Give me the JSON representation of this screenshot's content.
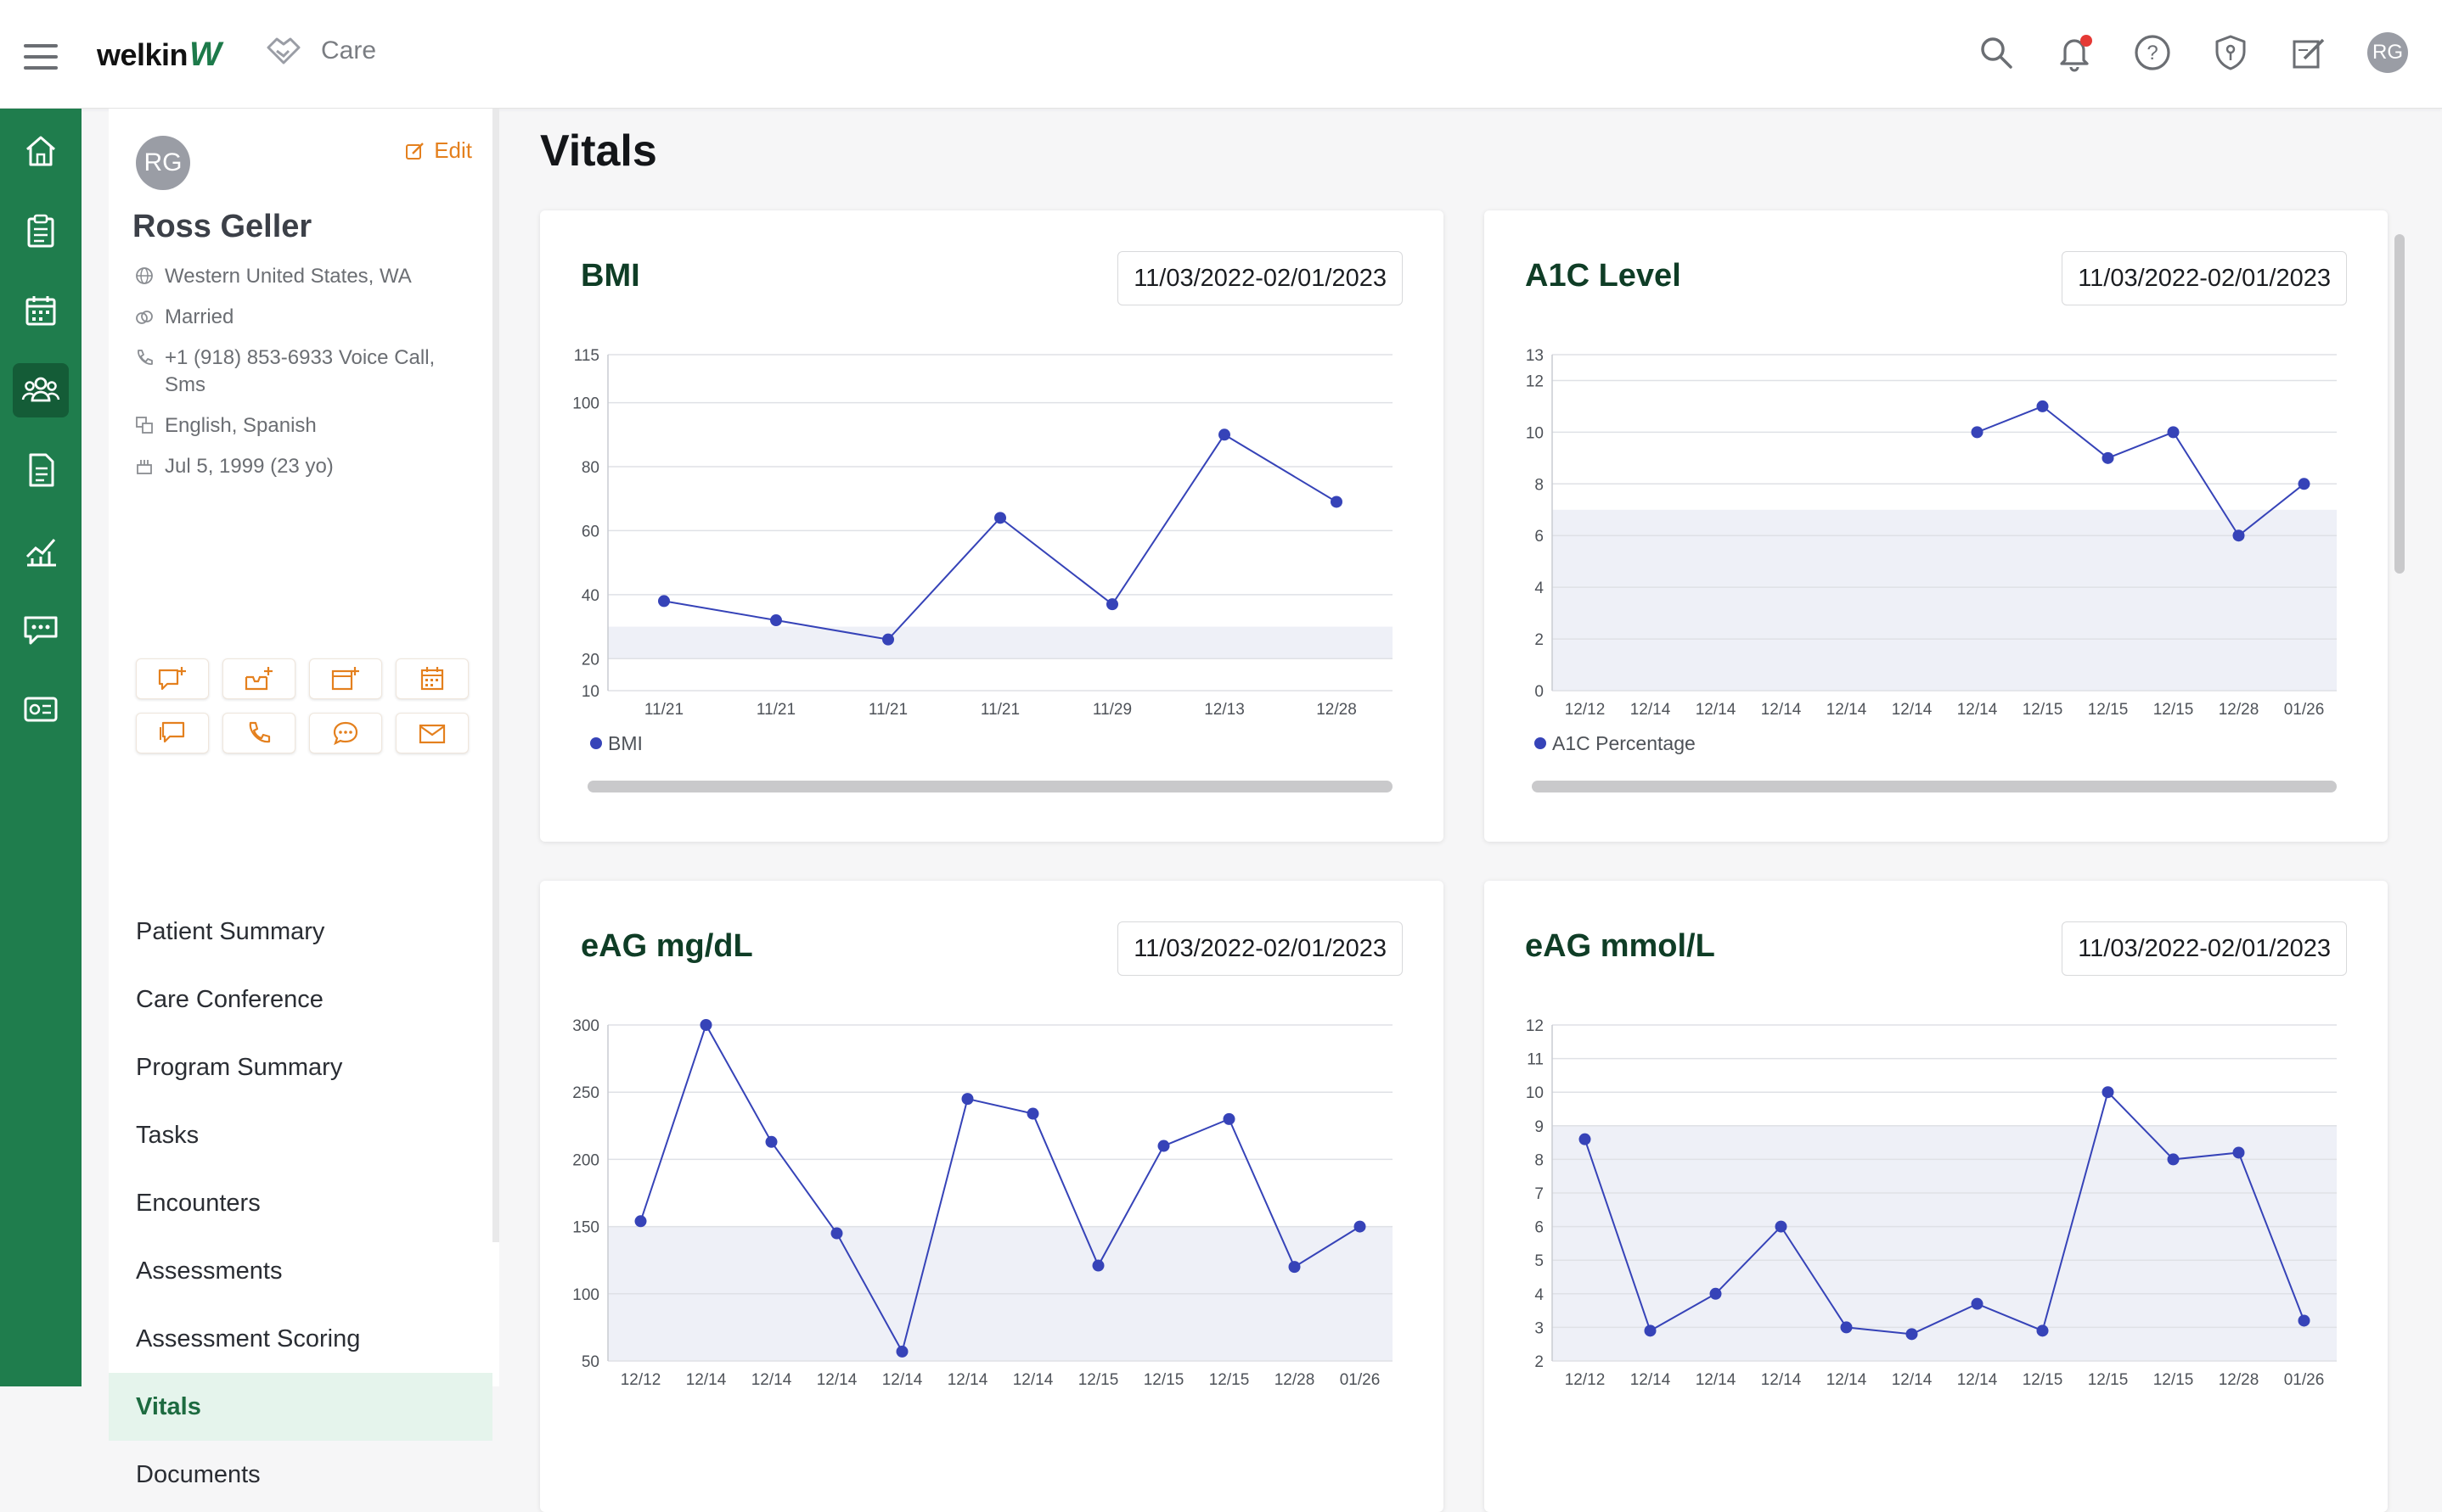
{
  "app": {
    "logo_text": "welkin",
    "module": "Care"
  },
  "user": {
    "initials": "RG"
  },
  "patient": {
    "initials": "RG",
    "edit_label": "Edit",
    "name": "Ross Geller",
    "location": "Western United States, WA",
    "marital": "Married",
    "phone": "+1 (918) 853-6933 Voice Call, Sms",
    "languages": "English, Spanish",
    "dob": "Jul 5, 1999 (23 yo)"
  },
  "menu": [
    {
      "label": "Patient Summary",
      "name": "menu-patient-summary"
    },
    {
      "label": "Care Conference",
      "name": "menu-care-conference"
    },
    {
      "label": "Program Summary",
      "name": "menu-program-summary"
    },
    {
      "label": "Tasks",
      "name": "menu-tasks"
    },
    {
      "label": "Encounters",
      "name": "menu-encounters"
    },
    {
      "label": "Assessments",
      "name": "menu-assessments"
    },
    {
      "label": "Assessment Scoring",
      "name": "menu-assessment-scoring"
    },
    {
      "label": "Vitals",
      "name": "menu-vitals",
      "active": true
    },
    {
      "label": "Documents",
      "name": "menu-documents"
    }
  ],
  "page": {
    "title": "Vitals"
  },
  "colors": {
    "accent": "#1f7d4d",
    "line": "#3643b8",
    "band": "#eef0f7",
    "edit": "#e4801e"
  },
  "chart_data": [
    {
      "type": "line",
      "title": "BMI",
      "date_range": "11/03/2022-02/01/2023",
      "x": [
        "11/21",
        "11/21",
        "11/21",
        "11/21",
        "11/29",
        "12/13",
        "12/28"
      ],
      "series": [
        {
          "name": "BMI",
          "values": [
            38,
            32,
            26,
            64,
            37,
            90,
            69
          ]
        }
      ],
      "yticks": [
        10,
        20,
        40,
        60,
        80,
        100,
        115
      ],
      "ylim": [
        10,
        115
      ],
      "band": [
        20,
        30
      ]
    },
    {
      "type": "line",
      "title": "A1C Level",
      "date_range": "11/03/2022-02/01/2023",
      "x": [
        "12/12",
        "12/14",
        "12/14",
        "12/14",
        "12/14",
        "12/14",
        "12/14",
        "12/15",
        "12/15",
        "12/15",
        "12/28",
        "01/26"
      ],
      "series": [
        {
          "name": "A1C Percentage",
          "values": [
            null,
            null,
            null,
            null,
            null,
            null,
            10,
            11,
            9,
            10,
            6,
            8
          ]
        }
      ],
      "yticks": [
        0,
        2,
        4,
        6,
        8,
        10,
        12,
        13
      ],
      "ylim": [
        0,
        13
      ],
      "band": [
        0,
        7
      ]
    },
    {
      "type": "line",
      "title": "eAG mg/dL",
      "date_range": "11/03/2022-02/01/2023",
      "x": [
        "12/12",
        "12/14",
        "12/14",
        "12/14",
        "12/14",
        "12/14",
        "12/14",
        "12/15",
        "12/15",
        "12/15",
        "12/28",
        "01/26"
      ],
      "series": [
        {
          "name": "eAG mg/dL",
          "values": [
            154,
            300,
            213,
            145,
            57,
            245,
            234,
            121,
            210,
            230,
            120,
            150
          ]
        }
      ],
      "yticks": [
        50,
        100,
        150,
        200,
        250,
        300
      ],
      "ylim": [
        50,
        300
      ],
      "band": [
        50,
        150
      ]
    },
    {
      "type": "line",
      "title": "eAG mmol/L",
      "date_range": "11/03/2022-02/01/2023",
      "x": [
        "12/12",
        "12/14",
        "12/14",
        "12/14",
        "12/14",
        "12/14",
        "12/14",
        "12/15",
        "12/15",
        "12/15",
        "12/28",
        "01/26"
      ],
      "series": [
        {
          "name": "eAG mmol/L",
          "values": [
            8.6,
            2.9,
            4,
            6,
            3,
            2.8,
            3.7,
            2.9,
            10,
            8,
            8.2,
            3.2
          ]
        }
      ],
      "yticks": [
        2,
        3,
        4,
        5,
        6,
        7,
        8,
        9,
        10,
        11,
        12
      ],
      "ylim": [
        2,
        12
      ],
      "band": [
        2,
        9
      ]
    }
  ]
}
